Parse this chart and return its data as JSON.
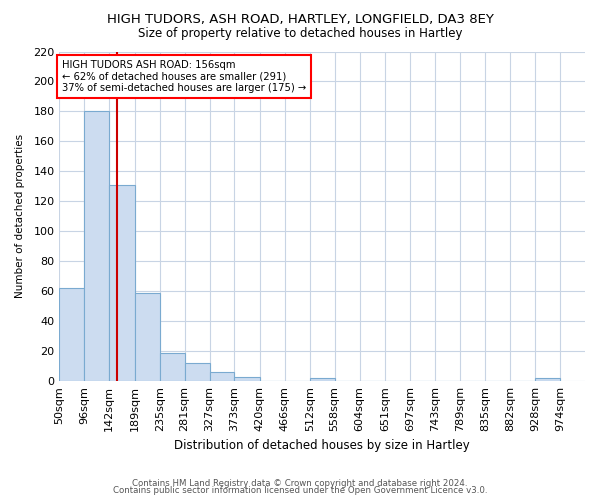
{
  "title": "HIGH TUDORS, ASH ROAD, HARTLEY, LONGFIELD, DA3 8EY",
  "subtitle": "Size of property relative to detached houses in Hartley",
  "xlabel": "Distribution of detached houses by size in Hartley",
  "ylabel": "Number of detached properties",
  "bar_color": "#ccdcf0",
  "bar_edge_color": "#7aaad0",
  "grid_color": "#c8d4e4",
  "vline_color": "#cc0000",
  "bins": [
    50,
    96,
    142,
    189,
    235,
    281,
    327,
    373,
    420,
    466,
    512,
    558,
    604,
    651,
    697,
    743,
    789,
    835,
    882,
    928,
    974
  ],
  "counts": [
    62,
    180,
    131,
    59,
    19,
    12,
    6,
    3,
    0,
    0,
    2,
    0,
    0,
    0,
    0,
    0,
    0,
    0,
    0,
    2
  ],
  "tick_labels": [
    "50sqm",
    "96sqm",
    "142sqm",
    "189sqm",
    "235sqm",
    "281sqm",
    "327sqm",
    "373sqm",
    "420sqm",
    "466sqm",
    "512sqm",
    "558sqm",
    "604sqm",
    "651sqm",
    "697sqm",
    "743sqm",
    "789sqm",
    "835sqm",
    "882sqm",
    "928sqm",
    "974sqm"
  ],
  "ylim": [
    0,
    220
  ],
  "yticks": [
    0,
    20,
    40,
    60,
    80,
    100,
    120,
    140,
    160,
    180,
    200,
    220
  ],
  "vline_x": 156,
  "annotation_line1": "HIGH TUDORS ASH ROAD: 156sqm",
  "annotation_line2": "← 62% of detached houses are smaller (291)",
  "annotation_line3": "37% of semi-detached houses are larger (175) →",
  "footer_line1": "Contains HM Land Registry data © Crown copyright and database right 2024.",
  "footer_line2": "Contains public sector information licensed under the Open Government Licence v3.0.",
  "background_color": "#ffffff"
}
